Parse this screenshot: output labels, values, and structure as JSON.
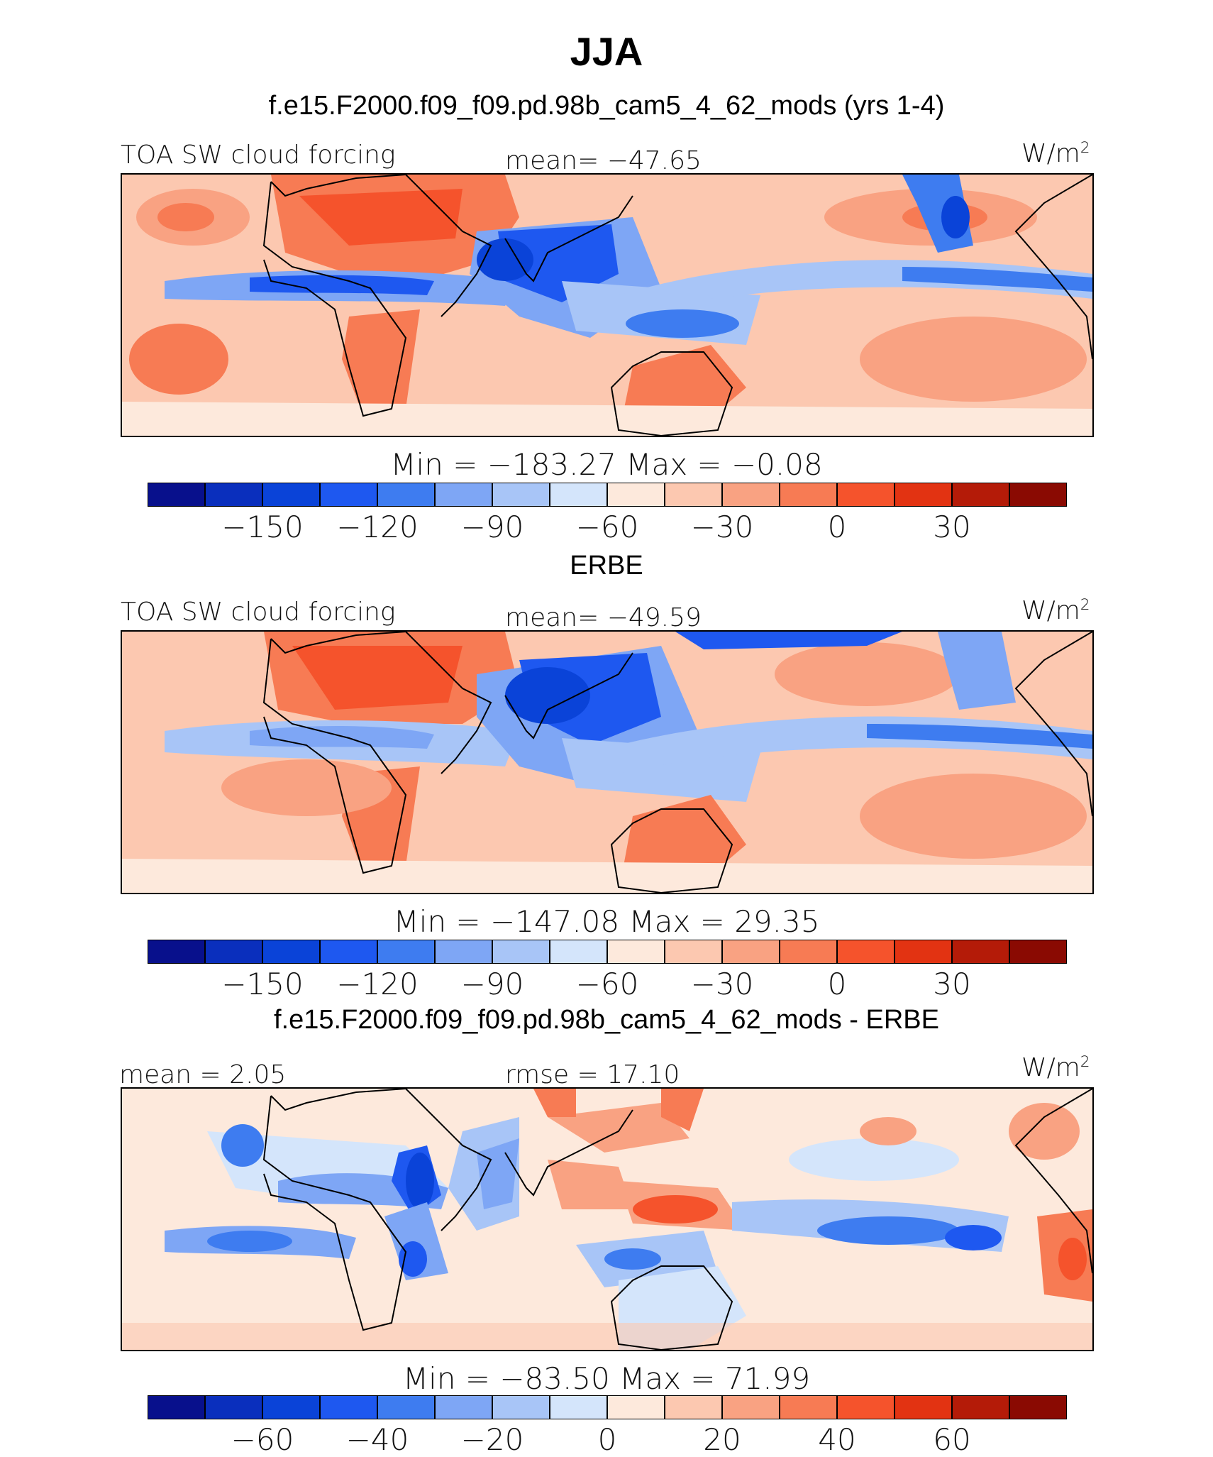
{
  "figure": {
    "title": "JJA"
  },
  "colors": {
    "scale": [
      "#08108c",
      "#0a2fbd",
      "#0a43d8",
      "#1e58f0",
      "#3e7cf0",
      "#7ea6f5",
      "#a8c5f7",
      "#d4e5fb",
      "#fde9dc",
      "#fcc8b0",
      "#f9a282",
      "#f77b54",
      "#f5532c",
      "#e23312",
      "#b41b08",
      "#8a0a02"
    ]
  },
  "chart_data": [
    {
      "type": "heatmap",
      "title": "f.e15.F2000.f09_f09.pd.98b_cam5_4_62_mods (yrs 1-4)",
      "variable": "TOA SW cloud forcing",
      "mean_label": "mean= −47.65",
      "units_base": "W/m",
      "units_sup": "2",
      "min_max_label": "Min  =  −183.27  Max  =    −0.08",
      "min": -183.27,
      "max": -0.08,
      "mean": -47.65,
      "colorbar_ticks": [
        "−150",
        "−120",
        "−90",
        "−60",
        "−30",
        "0",
        "30"
      ],
      "colorbar_levels": [
        -150,
        -120,
        -90,
        -60,
        -30,
        0,
        30
      ]
    },
    {
      "type": "heatmap",
      "title": "ERBE",
      "variable": "TOA SW cloud forcing",
      "mean_label": "mean= −49.59",
      "units_base": "W/m",
      "units_sup": "2",
      "min_max_label": "Min  =  −147.08  Max  =    29.35",
      "min": -147.08,
      "max": 29.35,
      "mean": -49.59,
      "colorbar_ticks": [
        "−150",
        "−120",
        "−90",
        "−60",
        "−30",
        "0",
        "30"
      ],
      "colorbar_levels": [
        -150,
        -120,
        -90,
        -60,
        -30,
        0,
        30
      ]
    },
    {
      "type": "heatmap",
      "title": "f.e15.F2000.f09_f09.pd.98b_cam5_4_62_mods - ERBE",
      "mean_label": "mean  =    2.05",
      "rmse_label": "rmse  =   17.10",
      "units_base": "W/m",
      "units_sup": "2",
      "min_max_label": "Min  =  −83.50  Max  =   71.99",
      "min": -83.5,
      "max": 71.99,
      "mean": 2.05,
      "rmse": 17.1,
      "colorbar_ticks": [
        "−60",
        "−40",
        "−20",
        "0",
        "20",
        "40",
        "60"
      ],
      "colorbar_levels": [
        -60,
        -40,
        -20,
        0,
        20,
        40,
        60
      ]
    }
  ]
}
